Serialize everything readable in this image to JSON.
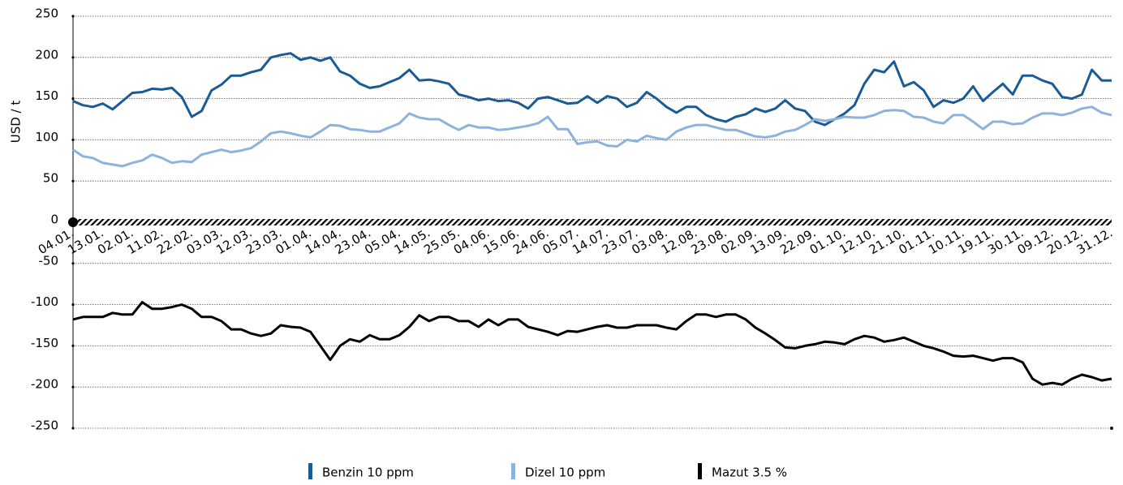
{
  "chart_data": {
    "type": "line",
    "y_label": "USD / t",
    "categories": [
      "04.01.",
      null,
      null,
      "13.01.",
      null,
      null,
      "02.01.",
      null,
      null,
      "11.02.",
      null,
      null,
      "22.02.",
      null,
      null,
      "03.03.",
      null,
      null,
      "12.03.",
      null,
      null,
      "23.03.",
      null,
      null,
      "01.04.",
      null,
      null,
      "14.04.",
      null,
      null,
      "23.04.",
      null,
      null,
      "05.04.",
      null,
      null,
      "14.05.",
      null,
      null,
      "25.05.",
      null,
      null,
      "04.06.",
      null,
      null,
      "15.06.",
      null,
      null,
      "24.06.",
      null,
      null,
      "05.07.",
      null,
      null,
      "14.07.",
      null,
      null,
      "23.07.",
      null,
      null,
      "03.08.",
      null,
      null,
      "12.08.",
      null,
      null,
      "23.08.",
      null,
      null,
      "02.09.",
      null,
      null,
      "13.09.",
      null,
      null,
      "22.09.",
      null,
      null,
      "01.10.",
      null,
      null,
      "12.10.",
      null,
      null,
      "21.10.",
      null,
      null,
      "01.11.",
      null,
      null,
      "10.11.",
      null,
      null,
      "19.11.",
      null,
      null,
      "30.11.",
      null,
      null,
      "09.12.",
      null,
      null,
      "20.12.",
      null,
      null,
      "31.12."
    ],
    "series": [
      {
        "name": "Benzin 10 ppm",
        "color": "#1a5b96",
        "values": [
          147,
          142,
          140,
          144,
          137,
          147,
          157,
          158,
          162,
          161,
          163,
          152,
          128,
          135,
          160,
          167,
          178,
          178,
          182,
          185,
          200,
          203,
          205,
          197,
          200,
          196,
          200,
          183,
          178,
          168,
          163,
          165,
          170,
          175,
          185,
          172,
          173,
          171,
          168,
          155,
          152,
          148,
          150,
          147,
          148,
          145,
          138,
          150,
          152,
          148,
          144,
          145,
          153,
          145,
          153,
          150,
          140,
          145,
          158,
          150,
          140,
          133,
          140,
          140,
          130,
          125,
          122,
          128,
          131,
          138,
          134,
          138,
          148,
          138,
          135,
          122,
          118,
          125,
          132,
          142,
          168,
          185,
          182,
          195,
          165,
          170,
          160,
          140,
          148,
          145,
          150,
          165,
          147,
          158,
          168,
          155,
          178,
          178,
          172,
          168,
          152,
          150,
          155,
          185,
          172,
          172
        ]
      },
      {
        "name": "Dizel 10 ppm",
        "color": "#8db3dc",
        "values": [
          88,
          80,
          78,
          72,
          70,
          68,
          72,
          75,
          82,
          78,
          72,
          74,
          73,
          82,
          85,
          88,
          85,
          87,
          90,
          98,
          108,
          110,
          108,
          105,
          103,
          110,
          118,
          117,
          113,
          112,
          110,
          110,
          115,
          120,
          132,
          127,
          125,
          125,
          118,
          112,
          118,
          115,
          115,
          112,
          113,
          115,
          117,
          120,
          128,
          113,
          113,
          95,
          97,
          98,
          93,
          92,
          100,
          98,
          105,
          102,
          100,
          110,
          115,
          118,
          118,
          115,
          112,
          112,
          108,
          104,
          103,
          105,
          110,
          112,
          118,
          125,
          123,
          125,
          128,
          127,
          127,
          130,
          135,
          136,
          135,
          128,
          127,
          122,
          120,
          130,
          130,
          122,
          113,
          122,
          122,
          119,
          120,
          127,
          132,
          132,
          130,
          133,
          138,
          140,
          133,
          130
        ]
      },
      {
        "name": "Mazut 3.5 %",
        "color": "#000000",
        "values": [
          -118,
          -115,
          -115,
          -115,
          -110,
          -112,
          -112,
          -97,
          -105,
          -105,
          -103,
          -100,
          -105,
          -115,
          -115,
          -120,
          -130,
          -130,
          -135,
          -138,
          -135,
          -125,
          -127,
          -128,
          -133,
          -150,
          -167,
          -150,
          -142,
          -145,
          -137,
          -142,
          -142,
          -137,
          -127,
          -113,
          -120,
          -115,
          -115,
          -120,
          -120,
          -127,
          -118,
          -125,
          -118,
          -118,
          -127,
          -130,
          -133,
          -137,
          -132,
          -133,
          -130,
          -127,
          -125,
          -128,
          -128,
          -125,
          -125,
          -125,
          -128,
          -130,
          -120,
          -112,
          -112,
          -115,
          -112,
          -112,
          -118,
          -128,
          -135,
          -143,
          -152,
          -153,
          -150,
          -148,
          -145,
          -146,
          -148,
          -142,
          -138,
          -140,
          -145,
          -143,
          -140,
          -145,
          -150,
          -153,
          -157,
          -162,
          -163,
          -162,
          -165,
          -168,
          -165,
          -165,
          -170,
          -190,
          -197,
          -195,
          -197,
          -190,
          -185,
          -188,
          -192,
          -190
        ]
      }
    ],
    "ylim": [
      -250,
      250
    ],
    "yticks": [
      -250,
      -200,
      -150,
      -100,
      -50,
      0,
      50,
      100,
      150,
      200,
      250
    ],
    "grid": true
  }
}
